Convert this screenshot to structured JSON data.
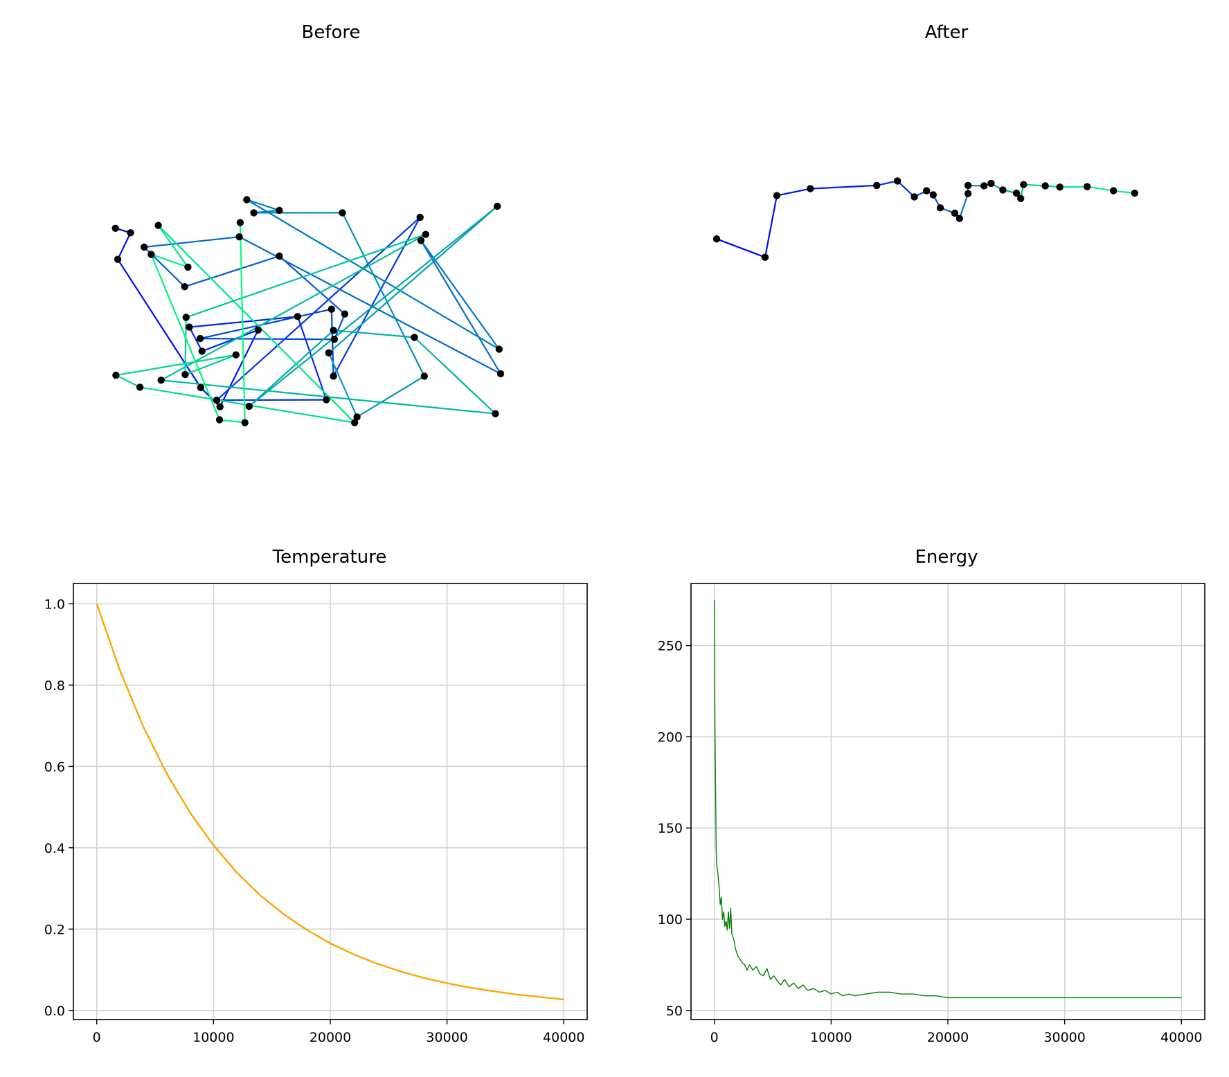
{
  "chart_data": [
    {
      "type": "line",
      "title": "Before",
      "axes_visible": false,
      "style": "colored route segments (cyan-to-blue) connecting black city points",
      "points": [
        [
          5.4,
          62.4
        ],
        [
          8.6,
          61.3
        ],
        [
          5.9,
          54.8
        ],
        [
          23.5,
          23.4
        ],
        [
          27.6,
          18.7
        ],
        [
          35.7,
          37.5
        ],
        [
          23.8,
          32.3
        ],
        [
          21.1,
          38.2
        ],
        [
          44.1,
          40.8
        ],
        [
          50.2,
          20.4
        ],
        [
          26.9,
          20.3
        ],
        [
          70.1,
          65.1
        ],
        [
          51.7,
          26.2
        ],
        [
          51.3,
          42.6
        ],
        [
          23.4,
          35.4
        ],
        [
          51.9,
          35.2
        ],
        [
          54.1,
          41.4
        ],
        [
          40.2,
          55.6
        ],
        [
          20.1,
          48.1
        ],
        [
          11.5,
          57.8
        ],
        [
          31.7,
          60.3
        ],
        [
          87.2,
          26.8
        ],
        [
          70.3,
          59.4
        ],
        [
          86.9,
          32.8
        ],
        [
          33.3,
          69.4
        ],
        [
          40.2,
          66.8
        ],
        [
          34.8,
          66.2
        ],
        [
          53.6,
          66.2
        ],
        [
          71.0,
          26.2
        ],
        [
          56.7,
          16.2
        ],
        [
          50.7,
          31.9
        ],
        [
          86.5,
          67.8
        ],
        [
          33.8,
          18.8
        ],
        [
          51.7,
          37.4
        ],
        [
          68.9,
          35.7
        ],
        [
          86.1,
          17.0
        ],
        [
          15.1,
          25.2
        ],
        [
          71.3,
          60.9
        ],
        [
          20.4,
          40.6
        ],
        [
          20.2,
          26.6
        ],
        [
          31.0,
          31.4
        ],
        [
          5.5,
          26.4
        ],
        [
          10.6,
          23.5
        ],
        [
          56.2,
          14.8
        ],
        [
          14.5,
          63.1
        ],
        [
          20.8,
          52.9
        ],
        [
          13.0,
          56.0
        ],
        [
          27.5,
          15.5
        ],
        [
          32.9,
          14.8
        ],
        [
          31.9,
          63.8
        ]
      ]
    },
    {
      "type": "line",
      "title": "After",
      "axes_visible": false,
      "style": "single optimized closed-open tour colored along its length",
      "points": [
        [
          2.2,
          59.8
        ],
        [
          12.5,
          55.3
        ],
        [
          15.0,
          70.4
        ],
        [
          22.1,
          72.1
        ],
        [
          36.2,
          72.9
        ],
        [
          40.6,
          74.0
        ],
        [
          44.2,
          70.1
        ],
        [
          46.8,
          71.6
        ],
        [
          48.2,
          70.6
        ],
        [
          49.7,
          67.4
        ],
        [
          52.8,
          66.1
        ],
        [
          53.8,
          64.8
        ],
        [
          55.6,
          70.9
        ],
        [
          55.6,
          72.9
        ],
        [
          59.0,
          72.8
        ],
        [
          60.5,
          73.4
        ],
        [
          63.0,
          71.8
        ],
        [
          65.9,
          71.0
        ],
        [
          66.8,
          69.7
        ],
        [
          67.4,
          73.1
        ],
        [
          72.0,
          72.8
        ],
        [
          75.1,
          72.5
        ],
        [
          80.9,
          72.6
        ],
        [
          86.5,
          71.6
        ],
        [
          91.0,
          71.0
        ]
      ]
    },
    {
      "type": "line",
      "title": "Temperature",
      "xlim": [
        -2000,
        42000
      ],
      "ylim": [
        -0.0225,
        1.05
      ],
      "xticks": [
        0,
        10000,
        20000,
        30000,
        40000
      ],
      "xtick_labels": [
        "0",
        "10000",
        "20000",
        "30000",
        "40000"
      ],
      "yticks": [
        0.0,
        0.2,
        0.4,
        0.6,
        0.8,
        1.0
      ],
      "ytick_labels": [
        "0.0",
        "0.2",
        "0.4",
        "0.6",
        "0.8",
        "1.0"
      ],
      "grid": true,
      "series": [
        {
          "color": "#ffa500",
          "x": [
            0,
            2000,
            4000,
            6000,
            8000,
            10000,
            12000,
            14000,
            16000,
            18000,
            20000,
            22000,
            24000,
            26000,
            28000,
            30000,
            32000,
            34000,
            36000,
            38000,
            40000
          ],
          "y": [
            1.0,
            0.835,
            0.697,
            0.582,
            0.486,
            0.406,
            0.339,
            0.283,
            0.237,
            0.198,
            0.165,
            0.138,
            0.115,
            0.096,
            0.08,
            0.067,
            0.056,
            0.047,
            0.039,
            0.033,
            0.027
          ]
        }
      ]
    },
    {
      "type": "line",
      "title": "Energy",
      "xlim": [
        -2000,
        42000
      ],
      "ylim": [
        45.0,
        284.0
      ],
      "xticks": [
        0,
        10000,
        20000,
        30000,
        40000
      ],
      "xtick_labels": [
        "0",
        "10000",
        "20000",
        "30000",
        "40000"
      ],
      "yticks": [
        50,
        100,
        150,
        200,
        250
      ],
      "ytick_labels": [
        "50",
        "100",
        "150",
        "200",
        "250"
      ],
      "grid": true,
      "series": [
        {
          "color": "#008000",
          "x": [
            0,
            50,
            100,
            150,
            200,
            300,
            400,
            500,
            600,
            700,
            800,
            900,
            1000,
            1100,
            1200,
            1300,
            1400,
            1500,
            1600,
            1700,
            1800,
            2000,
            2200,
            2400,
            2600,
            2800,
            3000,
            3300,
            3600,
            3900,
            4200,
            4500,
            4800,
            5100,
            5400,
            5700,
            6000,
            6400,
            6800,
            7200,
            7600,
            8000,
            8500,
            9000,
            9500,
            10000,
            10500,
            11000,
            11500,
            12000,
            13000,
            14000,
            15000,
            16000,
            17000,
            18000,
            19000,
            20000,
            22000,
            25000,
            28000,
            31000,
            34000,
            37000,
            40000
          ],
          "y": [
            275,
            205,
            175,
            140,
            130,
            125,
            118,
            108,
            112,
            100,
            104,
            96,
            99,
            94,
            104,
            95,
            106,
            92,
            90,
            88,
            84,
            80,
            78,
            76,
            75,
            72,
            75,
            72,
            74,
            70,
            69,
            73,
            67,
            69,
            66,
            64,
            67,
            63,
            65,
            62,
            64,
            61,
            62,
            60,
            61,
            59,
            60,
            58,
            59,
            58,
            59,
            60,
            60,
            59,
            59,
            58,
            58,
            57,
            57,
            57,
            57,
            57,
            57,
            57,
            57
          ]
        }
      ]
    }
  ]
}
